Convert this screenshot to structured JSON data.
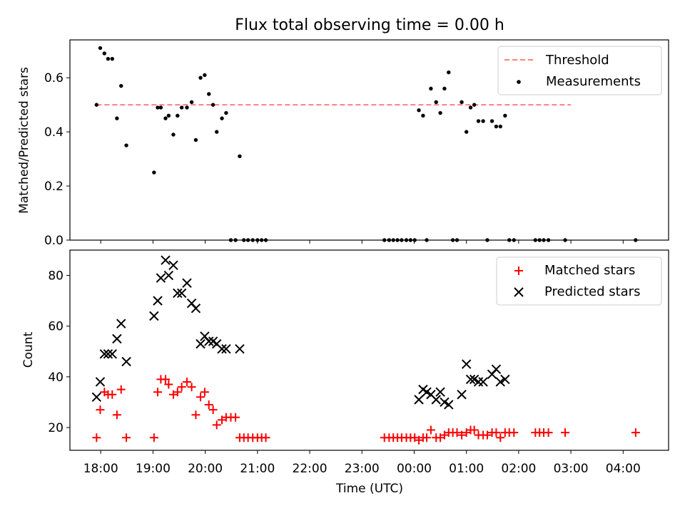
{
  "title": "Flux total observing time = 0.00 h",
  "x_axis_label": "Time (UTC)",
  "x_tick_labels": [
    "18:00",
    "19:00",
    "20:00",
    "21:00",
    "22:00",
    "23:00",
    "00:00",
    "01:00",
    "02:00",
    "03:00",
    "04:00"
  ],
  "colors": {
    "threshold": "#ff7f7f",
    "measurements": "#000000",
    "matched": "#ff0000",
    "predicted": "#000000"
  },
  "chart_data": [
    {
      "type": "scatter",
      "ylabel": "Matched/Predicted stars",
      "ylim": [
        0,
        0.74
      ],
      "xlim_hours": [
        17.41,
        28.87
      ],
      "y_ticks": [
        0.0,
        0.2,
        0.4,
        0.6
      ],
      "x_ticks_hours": [
        18,
        19,
        20,
        21,
        22,
        23,
        24,
        25,
        26,
        27,
        28
      ],
      "legend": [
        "Threshold",
        "Measurements"
      ],
      "legend_position": "top-right",
      "threshold": {
        "name": "Threshold",
        "y": 0.5,
        "x_range": [
          17.92,
          27.0
        ]
      },
      "series": [
        {
          "name": "Measurements",
          "points": [
            [
              17.92,
              0.5
            ],
            [
              17.99,
              0.71
            ],
            [
              18.07,
              0.69
            ],
            [
              18.14,
              0.67
            ],
            [
              18.22,
              0.67
            ],
            [
              18.31,
              0.45
            ],
            [
              18.39,
              0.57
            ],
            [
              18.49,
              0.35
            ],
            [
              19.02,
              0.25
            ],
            [
              19.09,
              0.49
            ],
            [
              19.15,
              0.49
            ],
            [
              19.24,
              0.45
            ],
            [
              19.3,
              0.46
            ],
            [
              19.39,
              0.39
            ],
            [
              19.47,
              0.46
            ],
            [
              19.55,
              0.49
            ],
            [
              19.65,
              0.49
            ],
            [
              19.74,
              0.51
            ],
            [
              19.82,
              0.37
            ],
            [
              19.91,
              0.6
            ],
            [
              19.99,
              0.61
            ],
            [
              20.07,
              0.54
            ],
            [
              20.15,
              0.5
            ],
            [
              20.22,
              0.4
            ],
            [
              20.32,
              0.45
            ],
            [
              20.4,
              0.47
            ],
            [
              20.49,
              0.0
            ],
            [
              20.58,
              0.0
            ],
            [
              20.66,
              0.31
            ],
            [
              20.74,
              0.0
            ],
            [
              20.82,
              0.0
            ],
            [
              20.91,
              0.0
            ],
            [
              21.0,
              0.0
            ],
            [
              21.08,
              0.0
            ],
            [
              21.16,
              0.0
            ],
            [
              23.43,
              0.0
            ],
            [
              23.52,
              0.0
            ],
            [
              23.6,
              0.0
            ],
            [
              23.68,
              0.0
            ],
            [
              23.76,
              0.0
            ],
            [
              23.85,
              0.0
            ],
            [
              23.93,
              0.0
            ],
            [
              24.01,
              0.0
            ],
            [
              24.09,
              0.48
            ],
            [
              24.17,
              0.46
            ],
            [
              24.24,
              0.0
            ],
            [
              24.32,
              0.56
            ],
            [
              24.42,
              0.51
            ],
            [
              24.5,
              0.47
            ],
            [
              24.58,
              0.56
            ],
            [
              24.66,
              0.62
            ],
            [
              24.74,
              0.0
            ],
            [
              24.82,
              0.0
            ],
            [
              24.91,
              0.51
            ],
            [
              25.0,
              0.4
            ],
            [
              25.08,
              0.49
            ],
            [
              25.15,
              0.5
            ],
            [
              25.23,
              0.44
            ],
            [
              25.32,
              0.44
            ],
            [
              25.4,
              0.0
            ],
            [
              25.49,
              0.44
            ],
            [
              25.57,
              0.42
            ],
            [
              25.65,
              0.42
            ],
            [
              25.74,
              0.46
            ],
            [
              25.82,
              0.0
            ],
            [
              25.91,
              0.0
            ],
            [
              26.32,
              0.0
            ],
            [
              26.4,
              0.0
            ],
            [
              26.48,
              0.0
            ],
            [
              26.57,
              0.0
            ],
            [
              26.89,
              0.0
            ],
            [
              28.24,
              0.0
            ]
          ]
        }
      ]
    },
    {
      "type": "scatter",
      "ylabel": "Count",
      "ylim": [
        11,
        90
      ],
      "xlim_hours": [
        17.41,
        28.87
      ],
      "y_ticks": [
        20,
        40,
        60,
        80
      ],
      "x_ticks_hours": [
        18,
        19,
        20,
        21,
        22,
        23,
        24,
        25,
        26,
        27,
        28
      ],
      "legend": [
        "Matched stars",
        "Predicted stars"
      ],
      "legend_position": "top-right",
      "series": [
        {
          "name": "Matched stars",
          "marker": "plus",
          "points": [
            [
              17.92,
              16
            ],
            [
              17.99,
              27
            ],
            [
              18.07,
              34
            ],
            [
              18.14,
              33
            ],
            [
              18.22,
              33
            ],
            [
              18.31,
              25
            ],
            [
              18.39,
              35
            ],
            [
              18.49,
              16
            ],
            [
              19.02,
              16
            ],
            [
              19.09,
              34
            ],
            [
              19.15,
              39
            ],
            [
              19.24,
              39
            ],
            [
              19.3,
              37
            ],
            [
              19.39,
              33
            ],
            [
              19.47,
              34
            ],
            [
              19.55,
              36
            ],
            [
              19.65,
              38
            ],
            [
              19.74,
              36
            ],
            [
              19.82,
              25
            ],
            [
              19.91,
              32
            ],
            [
              19.99,
              34
            ],
            [
              20.07,
              29
            ],
            [
              20.15,
              27
            ],
            [
              20.22,
              21
            ],
            [
              20.32,
              23
            ],
            [
              20.4,
              24
            ],
            [
              20.49,
              24
            ],
            [
              20.58,
              24
            ],
            [
              20.66,
              16
            ],
            [
              20.74,
              16
            ],
            [
              20.82,
              16
            ],
            [
              20.91,
              16
            ],
            [
              21.0,
              16
            ],
            [
              21.08,
              16
            ],
            [
              21.16,
              16
            ],
            [
              23.43,
              16
            ],
            [
              23.52,
              16
            ],
            [
              23.6,
              16
            ],
            [
              23.68,
              16
            ],
            [
              23.76,
              16
            ],
            [
              23.85,
              16
            ],
            [
              23.93,
              16
            ],
            [
              24.01,
              16
            ],
            [
              24.09,
              15
            ],
            [
              24.17,
              16
            ],
            [
              24.24,
              16
            ],
            [
              24.32,
              19
            ],
            [
              24.42,
              16
            ],
            [
              24.5,
              16
            ],
            [
              24.58,
              17
            ],
            [
              24.66,
              18
            ],
            [
              24.74,
              18
            ],
            [
              24.82,
              18
            ],
            [
              24.91,
              17
            ],
            [
              25.0,
              18
            ],
            [
              25.08,
              19
            ],
            [
              25.15,
              19
            ],
            [
              25.23,
              17
            ],
            [
              25.32,
              17
            ],
            [
              25.4,
              17
            ],
            [
              25.49,
              18
            ],
            [
              25.57,
              18
            ],
            [
              25.65,
              16
            ],
            [
              25.74,
              18
            ],
            [
              25.82,
              18
            ],
            [
              25.91,
              18
            ],
            [
              26.32,
              18
            ],
            [
              26.4,
              18
            ],
            [
              26.48,
              18
            ],
            [
              26.57,
              18
            ],
            [
              26.89,
              18
            ],
            [
              28.24,
              18
            ]
          ]
        },
        {
          "name": "Predicted stars",
          "marker": "x",
          "points": [
            [
              17.92,
              32
            ],
            [
              17.99,
              38
            ],
            [
              18.07,
              49
            ],
            [
              18.14,
              49
            ],
            [
              18.22,
              49
            ],
            [
              18.31,
              55
            ],
            [
              18.39,
              61
            ],
            [
              18.49,
              46
            ],
            [
              19.02,
              64
            ],
            [
              19.09,
              70
            ],
            [
              19.15,
              79
            ],
            [
              19.24,
              86
            ],
            [
              19.3,
              80
            ],
            [
              19.39,
              84
            ],
            [
              19.47,
              73
            ],
            [
              19.55,
              73
            ],
            [
              19.65,
              77
            ],
            [
              19.74,
              69
            ],
            [
              19.82,
              67
            ],
            [
              19.91,
              53
            ],
            [
              19.99,
              56
            ],
            [
              20.07,
              54
            ],
            [
              20.15,
              54
            ],
            [
              20.22,
              53
            ],
            [
              20.32,
              51
            ],
            [
              20.4,
              51
            ],
            [
              20.66,
              51
            ],
            [
              24.09,
              31
            ],
            [
              24.17,
              35
            ],
            [
              24.24,
              34
            ],
            [
              24.32,
              33
            ],
            [
              24.42,
              31
            ],
            [
              24.5,
              34
            ],
            [
              24.58,
              30
            ],
            [
              24.66,
              29
            ],
            [
              24.91,
              33
            ],
            [
              25.0,
              45
            ],
            [
              25.08,
              39
            ],
            [
              25.15,
              39
            ],
            [
              25.23,
              38
            ],
            [
              25.32,
              38
            ],
            [
              25.49,
              41
            ],
            [
              25.57,
              43
            ],
            [
              25.65,
              38
            ],
            [
              25.74,
              39
            ]
          ]
        }
      ]
    }
  ]
}
